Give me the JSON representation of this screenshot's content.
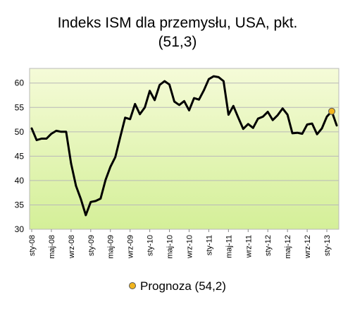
{
  "chart_data": {
    "type": "line",
    "title": "Indeks ISM dla przemysłu, USA, pkt.",
    "subtitle": "(51,3)",
    "xlabel": "",
    "ylabel": "",
    "ylim": [
      30,
      63
    ],
    "yticks": [
      30,
      35,
      40,
      45,
      50,
      55,
      60
    ],
    "grid": true,
    "legend_position": "bottom",
    "x_tick_labels": [
      "sty-08",
      "maj-08",
      "wrz-08",
      "sty-09",
      "maj-09",
      "wrz-09",
      "sty-10",
      "maj-10",
      "wrz-10",
      "sty-11",
      "maj-11",
      "wrz-11",
      "sty-12",
      "maj-12",
      "wrz-12",
      "sty-13"
    ],
    "x_tick_indices": [
      0,
      4,
      8,
      12,
      16,
      20,
      24,
      28,
      32,
      36,
      40,
      44,
      48,
      52,
      56,
      60
    ],
    "series": [
      {
        "color": "#000000",
        "values": [
          50.7,
          48.3,
          48.6,
          48.6,
          49.6,
          50.2,
          50.0,
          50.0,
          43.5,
          38.9,
          36.2,
          32.9,
          35.6,
          35.8,
          36.3,
          40.1,
          42.8,
          44.8,
          48.9,
          52.9,
          52.6,
          55.7,
          53.6,
          55.0,
          58.4,
          56.5,
          59.6,
          60.4,
          59.7,
          56.2,
          55.5,
          56.3,
          54.4,
          56.9,
          56.6,
          58.5,
          60.8,
          61.4,
          61.2,
          60.4,
          53.5,
          55.3,
          52.9,
          50.6,
          51.6,
          50.8,
          52.7,
          53.1,
          54.1,
          52.4,
          53.4,
          54.8,
          53.5,
          49.7,
          49.8,
          49.6,
          51.5,
          51.7,
          49.5,
          50.7,
          53.1,
          54.2,
          51.3
        ]
      },
      {
        "name": "Prognoza (54,2)",
        "type": "marker",
        "color": "#f2b51e",
        "points": [
          {
            "x": 61,
            "y": 54.2
          }
        ]
      }
    ]
  }
}
